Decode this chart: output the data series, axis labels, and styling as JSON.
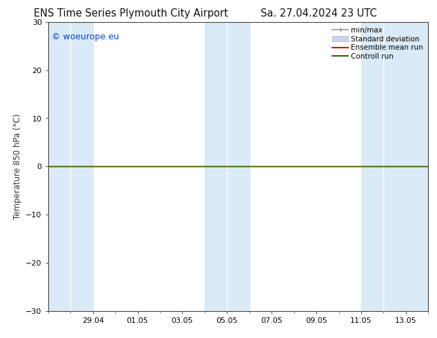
{
  "title_left": "ENS Time Series Plymouth City Airport",
  "title_right": "Sa. 27.04.2024 23 UTC",
  "ylabel": "Temperature 850 hPa (°C)",
  "ylim": [
    -30,
    30
  ],
  "yticks": [
    -30,
    -20,
    -10,
    0,
    10,
    20,
    30
  ],
  "xtick_labels": [
    "29.04",
    "01.05",
    "03.05",
    "05.05",
    "07.05",
    "09.05",
    "11.05",
    "13.05"
  ],
  "bg_color": "#ffffff",
  "plot_bg_color": "#ffffff",
  "shaded_band_color": "#daeaf7",
  "watermark_text": "© woeurope.eu",
  "watermark_color": "#0044bb",
  "zero_line_color": "#556600",
  "zero_line_y": 0.0,
  "title_fontsize": 10.5,
  "axis_fontsize": 8.5,
  "tick_fontsize": 8,
  "watermark_fontsize": 9,
  "legend_fontsize": 7.5,
  "spine_color": "#444444",
  "tick_color": "#444444"
}
